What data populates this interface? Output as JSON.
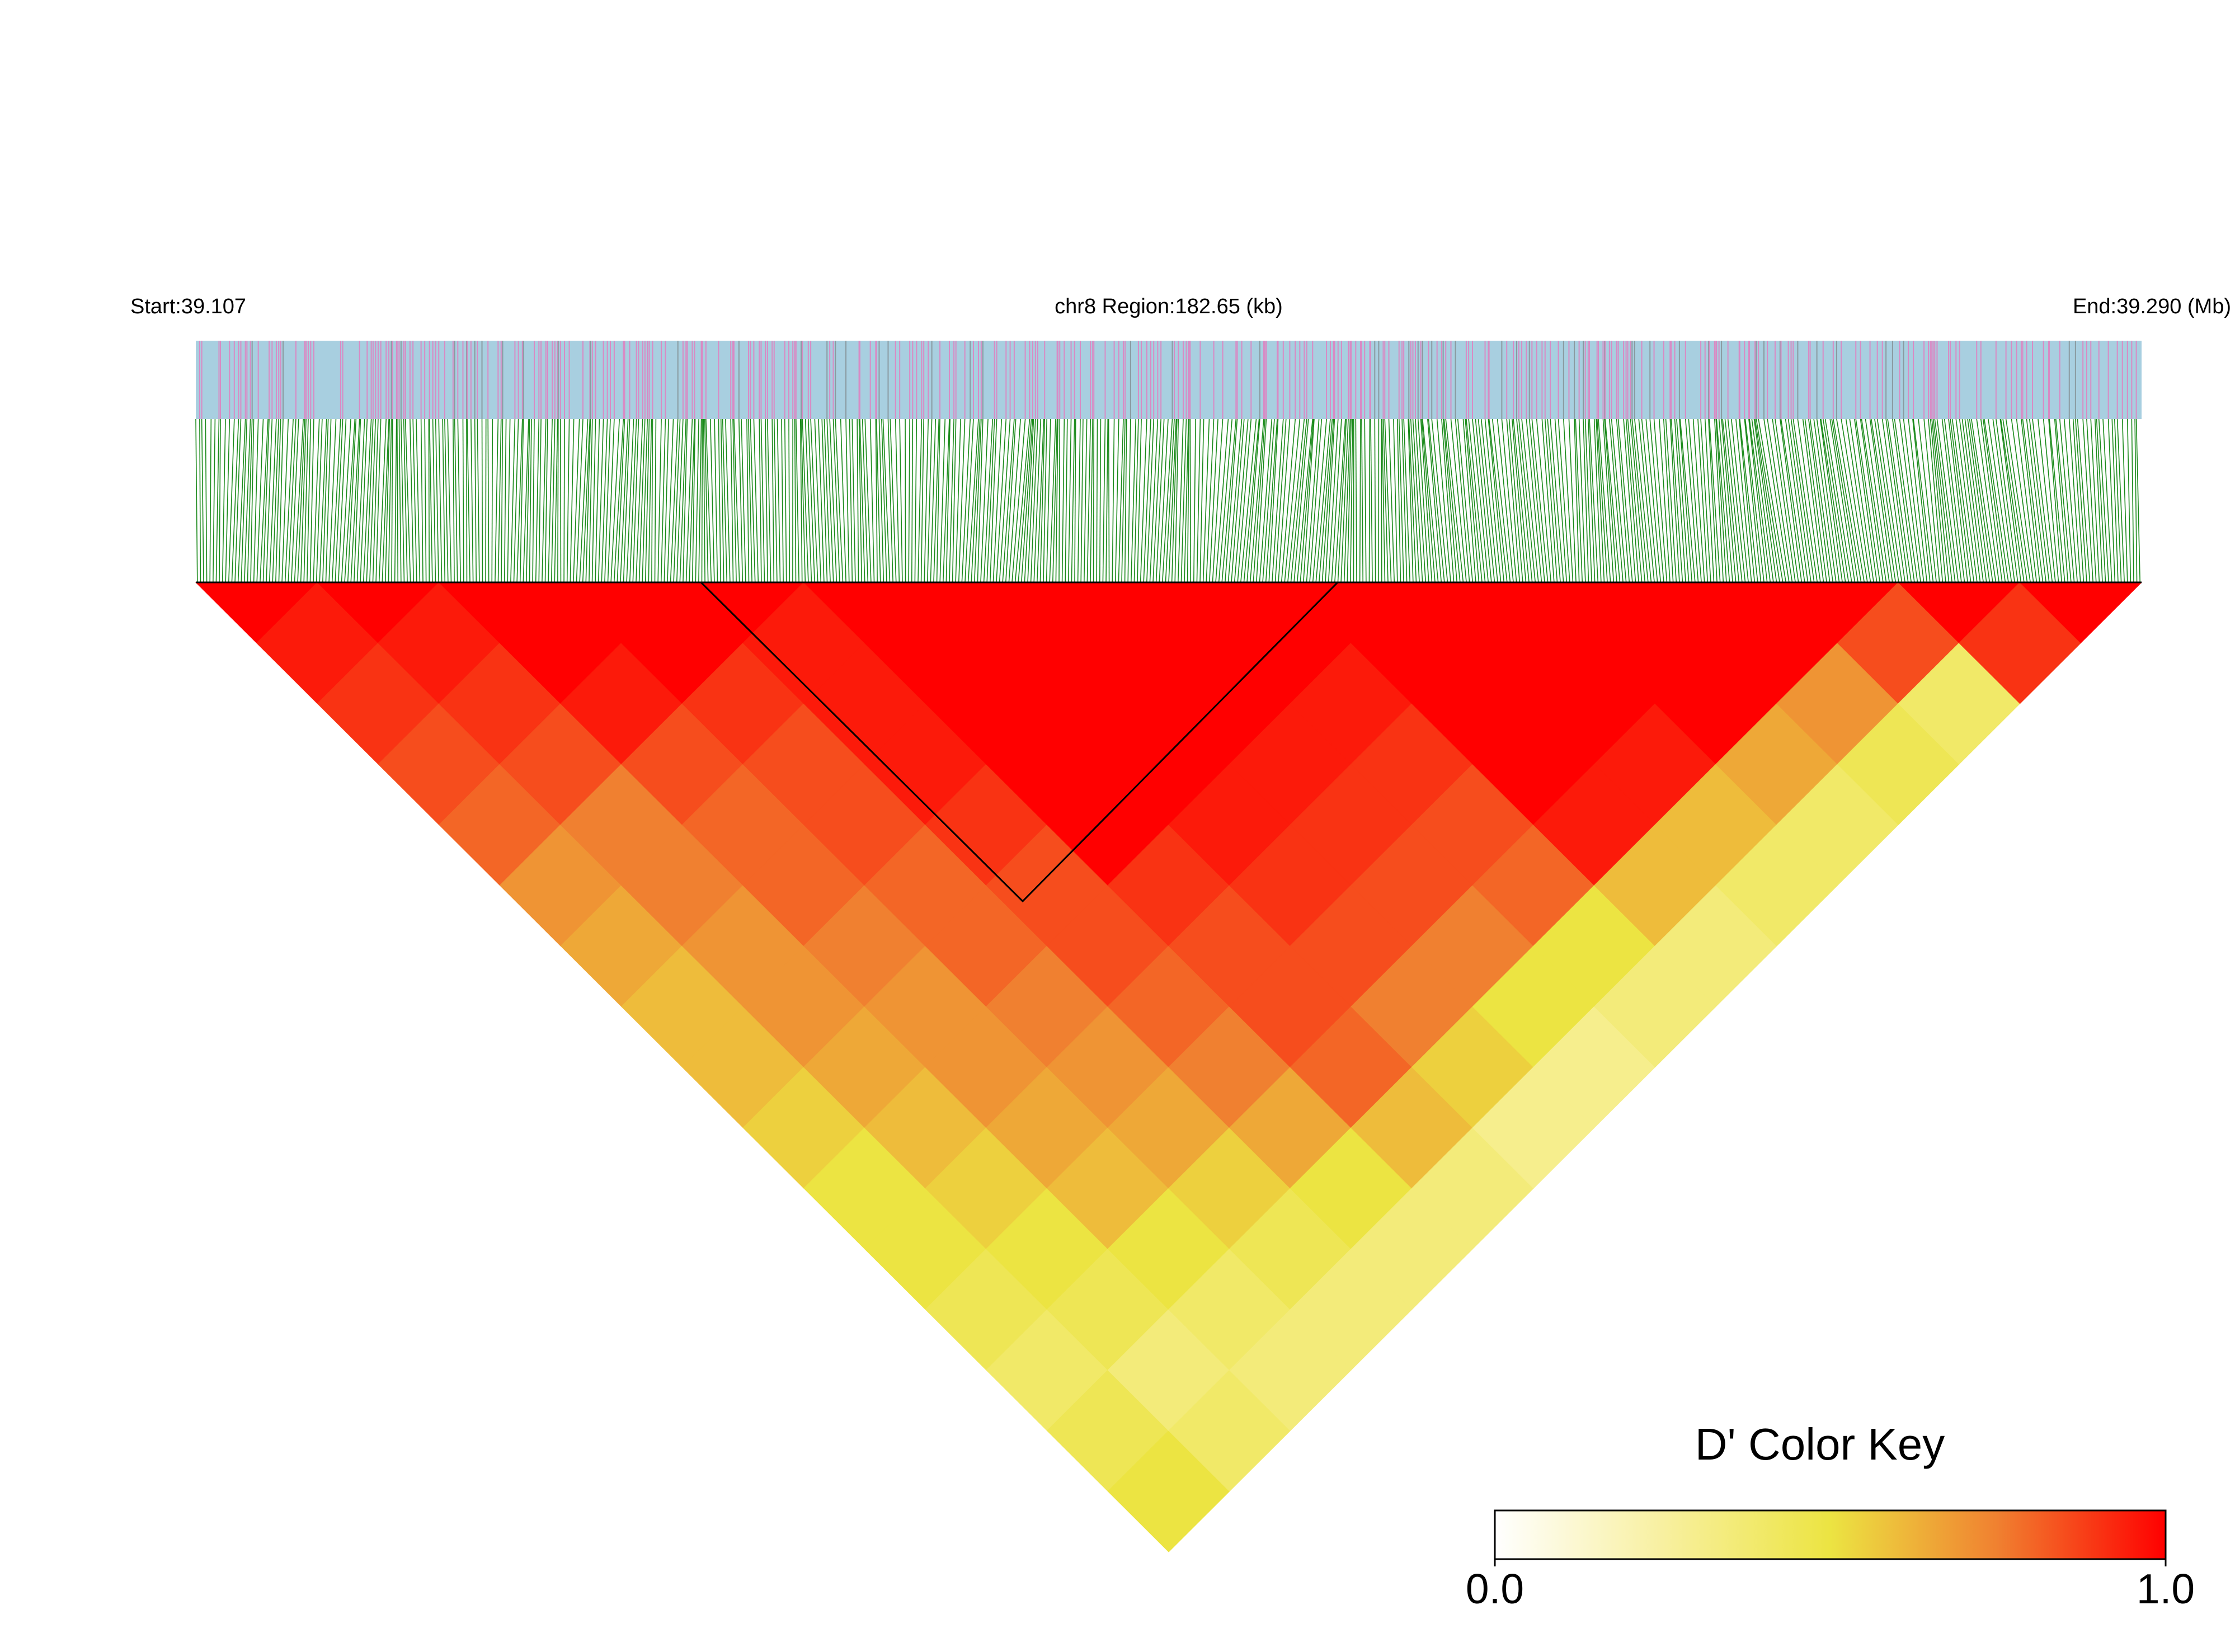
{
  "chart_data": {
    "type": "ld-heatmap",
    "start_label": "Start:39.107",
    "region_label": "chr8 Region:182.65 (kb)",
    "end_label": "End:39.290 (Mb)",
    "key_title": "D' Color Key",
    "colorlim": [
      0,
      1
    ],
    "colorticks": [
      {
        "value": 0,
        "label": "0.0"
      },
      {
        "value": 1,
        "label": "1.0"
      }
    ],
    "colors": [
      "#ffffff",
      "#f8f0a0",
      "#ece442",
      "#f08030",
      "#ff0000"
    ],
    "dprime": [
      [
        1,
        0.95,
        0.9,
        0.85,
        0.8,
        0.7,
        0.65,
        0.6,
        0.6,
        0.55,
        0.5,
        0.5,
        0.45,
        0.4,
        0.45,
        0.5
      ],
      [
        1,
        0.95,
        0.9,
        0.85,
        0.75,
        0.75,
        0.7,
        0.7,
        0.65,
        0.6,
        0.55,
        0.5,
        0.45,
        0.35,
        0.4
      ],
      [
        1,
        1,
        0.95,
        0.85,
        0.8,
        0.8,
        0.75,
        0.7,
        0.7,
        0.65,
        0.6,
        0.5,
        0.4,
        0.35
      ],
      [
        1,
        1,
        0.9,
        0.85,
        0.85,
        0.8,
        0.8,
        0.75,
        0.7,
        0.65,
        0.55,
        0.45,
        0.35
      ],
      [
        1,
        0.95,
        0.95,
        0.95,
        0.9,
        0.85,
        0.85,
        0.8,
        0.75,
        0.65,
        0.5,
        0.35
      ],
      [
        1,
        1,
        1,
        1,
        1,
        0.9,
        0.85,
        0.85,
        0.8,
        0.6,
        0.35
      ],
      [
        1,
        1,
        1,
        1,
        0.95,
        0.9,
        0.85,
        0.75,
        0.55,
        0.3
      ],
      [
        1,
        1,
        1,
        0.95,
        0.9,
        0.85,
        0.75,
        0.5,
        0.3
      ],
      [
        1,
        1,
        0.95,
        0.9,
        0.85,
        0.8,
        0.5,
        0.35
      ],
      [
        1,
        1,
        1,
        1,
        0.95,
        0.6,
        0.35
      ],
      [
        1,
        1,
        1,
        0.95,
        0.6,
        0.4
      ],
      [
        1,
        1,
        1,
        0.65,
        0.4
      ],
      [
        1,
        1,
        0.7,
        0.45
      ],
      [
        1,
        0.85,
        0.4
      ],
      [
        1,
        0.9
      ],
      [
        1
      ]
    ]
  }
}
